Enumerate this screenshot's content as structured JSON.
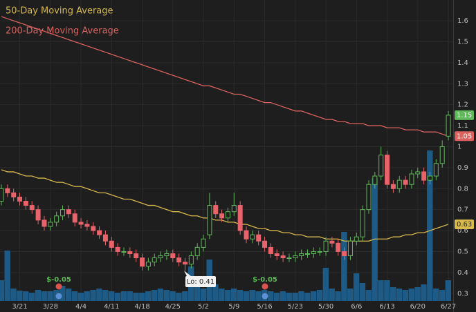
{
  "chart_data": {
    "type": "candlestick",
    "categories": [
      null,
      null,
      null,
      "3/21",
      null,
      null,
      null,
      null,
      "3/28",
      null,
      null,
      null,
      null,
      "4/4",
      null,
      null,
      null,
      null,
      "4/11",
      null,
      null,
      null,
      null,
      "4/18",
      null,
      null,
      null,
      null,
      "4/25",
      null,
      null,
      null,
      null,
      "5/2",
      null,
      null,
      null,
      null,
      "5/9",
      null,
      null,
      null,
      null,
      "5/16",
      null,
      null,
      null,
      null,
      "5/23",
      null,
      null,
      null,
      null,
      "5/30",
      null,
      null,
      null,
      null,
      "6/6",
      null,
      null,
      null,
      null,
      "6/13",
      null,
      null,
      null,
      null,
      "6/20",
      null,
      null,
      null,
      null,
      "6/27"
    ],
    "open": [
      0.74,
      0.8,
      0.78,
      0.76,
      0.74,
      0.72,
      0.7,
      0.65,
      0.62,
      0.64,
      0.67,
      0.7,
      0.68,
      0.64,
      0.63,
      0.62,
      0.6,
      0.58,
      0.55,
      0.52,
      0.5,
      0.5,
      0.49,
      0.47,
      0.43,
      0.45,
      0.47,
      0.48,
      0.49,
      0.47,
      0.45,
      0.44,
      0.48,
      0.52,
      0.58,
      0.72,
      0.68,
      0.66,
      0.69,
      0.72,
      0.6,
      0.56,
      0.58,
      0.55,
      0.52,
      0.49,
      0.48,
      0.47,
      0.47,
      0.48,
      0.49,
      0.49,
      0.5,
      0.5,
      0.55,
      0.54,
      0.5,
      0.48,
      0.55,
      0.57,
      0.7,
      0.82,
      0.86,
      0.96,
      0.82,
      0.8,
      0.84,
      0.82,
      0.87,
      0.88,
      0.84,
      0.86,
      0.92,
      1.05
    ],
    "high": [
      0.82,
      0.82,
      0.8,
      0.78,
      0.76,
      0.74,
      0.72,
      0.67,
      0.66,
      0.69,
      0.72,
      0.72,
      0.7,
      0.66,
      0.65,
      0.64,
      0.62,
      0.6,
      0.57,
      0.54,
      0.52,
      0.52,
      0.51,
      0.49,
      0.47,
      0.49,
      0.5,
      0.51,
      0.51,
      0.49,
      0.47,
      0.5,
      0.54,
      0.58,
      0.78,
      0.74,
      0.7,
      0.71,
      0.78,
      0.74,
      0.62,
      0.6,
      0.6,
      0.57,
      0.54,
      0.51,
      0.5,
      0.49,
      0.5,
      0.51,
      0.51,
      0.52,
      0.52,
      0.57,
      0.57,
      0.56,
      0.52,
      0.57,
      0.59,
      0.72,
      0.84,
      0.88,
      1.0,
      0.98,
      0.84,
      0.86,
      0.86,
      0.89,
      0.9,
      0.9,
      0.88,
      0.94,
      1.03,
      1.17
    ],
    "low": [
      0.72,
      0.76,
      0.74,
      0.72,
      0.7,
      0.68,
      0.63,
      0.6,
      0.6,
      0.62,
      0.65,
      0.66,
      0.62,
      0.61,
      0.6,
      0.58,
      0.56,
      0.53,
      0.5,
      0.48,
      0.48,
      0.47,
      0.45,
      0.41,
      0.41,
      0.43,
      0.45,
      0.46,
      0.45,
      0.43,
      0.41,
      0.42,
      0.46,
      0.5,
      0.56,
      0.66,
      0.64,
      0.64,
      0.67,
      0.58,
      0.54,
      0.54,
      0.53,
      0.5,
      0.47,
      0.46,
      0.45,
      0.45,
      0.45,
      0.46,
      0.47,
      0.47,
      0.48,
      0.48,
      0.52,
      0.48,
      0.46,
      0.46,
      0.53,
      0.55,
      0.68,
      0.8,
      0.84,
      0.8,
      0.78,
      0.78,
      0.8,
      0.8,
      0.85,
      0.82,
      0.82,
      0.84,
      0.9,
      1.03
    ],
    "close": [
      0.8,
      0.78,
      0.76,
      0.74,
      0.72,
      0.7,
      0.65,
      0.62,
      0.64,
      0.67,
      0.7,
      0.68,
      0.64,
      0.63,
      0.62,
      0.6,
      0.58,
      0.55,
      0.52,
      0.5,
      0.5,
      0.49,
      0.47,
      0.43,
      0.45,
      0.47,
      0.48,
      0.49,
      0.47,
      0.45,
      0.44,
      0.48,
      0.52,
      0.56,
      0.72,
      0.68,
      0.66,
      0.69,
      0.72,
      0.6,
      0.56,
      0.58,
      0.55,
      0.52,
      0.49,
      0.48,
      0.47,
      0.47,
      0.48,
      0.49,
      0.49,
      0.5,
      0.5,
      0.55,
      0.54,
      0.5,
      0.48,
      0.55,
      0.57,
      0.7,
      0.82,
      0.86,
      0.96,
      0.82,
      0.8,
      0.84,
      0.82,
      0.87,
      0.88,
      0.84,
      0.86,
      0.92,
      1.0,
      1.15
    ],
    "volume": [
      30,
      73,
      18,
      15,
      14,
      12,
      16,
      14,
      14,
      16,
      22,
      18,
      14,
      12,
      14,
      16,
      18,
      16,
      14,
      12,
      14,
      14,
      12,
      12,
      14,
      16,
      18,
      16,
      14,
      12,
      14,
      50,
      22,
      18,
      60,
      24,
      18,
      16,
      18,
      16,
      14,
      16,
      14,
      16,
      14,
      12,
      14,
      12,
      12,
      14,
      12,
      14,
      16,
      48,
      18,
      14,
      100,
      18,
      40,
      26,
      16,
      178,
      30,
      30,
      20,
      18,
      16,
      18,
      20,
      24,
      218,
      18,
      16,
      30
    ],
    "volume_lim": [
      0,
      250
    ],
    "up_color": "#5fb85a",
    "down_color": "#e8636b",
    "volume_color": "#1d5b86",
    "last_close_label": "1.15",
    "series": [
      {
        "name": "50-Day Moving Average",
        "color": "#d8b94c",
        "last_label": "0.63",
        "values": [
          0.89,
          0.88,
          0.88,
          0.87,
          0.86,
          0.86,
          0.85,
          0.85,
          0.84,
          0.83,
          0.83,
          0.82,
          0.81,
          0.81,
          0.8,
          0.79,
          0.78,
          0.78,
          0.77,
          0.76,
          0.75,
          0.75,
          0.74,
          0.73,
          0.72,
          0.72,
          0.71,
          0.7,
          0.69,
          0.69,
          0.68,
          0.67,
          0.67,
          0.66,
          0.66,
          0.65,
          0.65,
          0.64,
          0.64,
          0.63,
          0.63,
          0.62,
          0.61,
          0.61,
          0.6,
          0.6,
          0.59,
          0.59,
          0.58,
          0.58,
          0.57,
          0.57,
          0.57,
          0.56,
          0.56,
          0.56,
          0.55,
          0.55,
          0.55,
          0.55,
          0.55,
          0.56,
          0.56,
          0.56,
          0.57,
          0.57,
          0.58,
          0.58,
          0.59,
          0.59,
          0.6,
          0.61,
          0.62,
          0.63
        ]
      },
      {
        "name": "200-Day Moving Average",
        "color": "#d9625e",
        "last_label": "1.05",
        "values": [
          1.62,
          1.61,
          1.6,
          1.59,
          1.58,
          1.57,
          1.56,
          1.55,
          1.54,
          1.53,
          1.52,
          1.51,
          1.5,
          1.49,
          1.48,
          1.47,
          1.46,
          1.45,
          1.44,
          1.43,
          1.42,
          1.41,
          1.4,
          1.39,
          1.38,
          1.37,
          1.36,
          1.35,
          1.34,
          1.33,
          1.32,
          1.31,
          1.3,
          1.29,
          1.29,
          1.28,
          1.27,
          1.26,
          1.25,
          1.25,
          1.24,
          1.23,
          1.22,
          1.21,
          1.21,
          1.2,
          1.19,
          1.18,
          1.17,
          1.17,
          1.16,
          1.15,
          1.14,
          1.13,
          1.13,
          1.12,
          1.12,
          1.11,
          1.11,
          1.11,
          1.1,
          1.1,
          1.1,
          1.09,
          1.09,
          1.09,
          1.08,
          1.08,
          1.08,
          1.07,
          1.07,
          1.07,
          1.06,
          1.05
        ]
      }
    ],
    "ylim": [
      0.212,
      1.699
    ],
    "yticks": [
      0.3,
      0.4,
      0.5,
      0.6,
      0.7,
      0.8,
      0.9,
      1,
      1.1,
      1.2,
      1.3,
      1.4,
      1.5,
      1.6
    ],
    "grid": true,
    "low_annotation": "Lo: 0.41",
    "earnings": [
      "$-0.05",
      "$-0.05"
    ]
  }
}
